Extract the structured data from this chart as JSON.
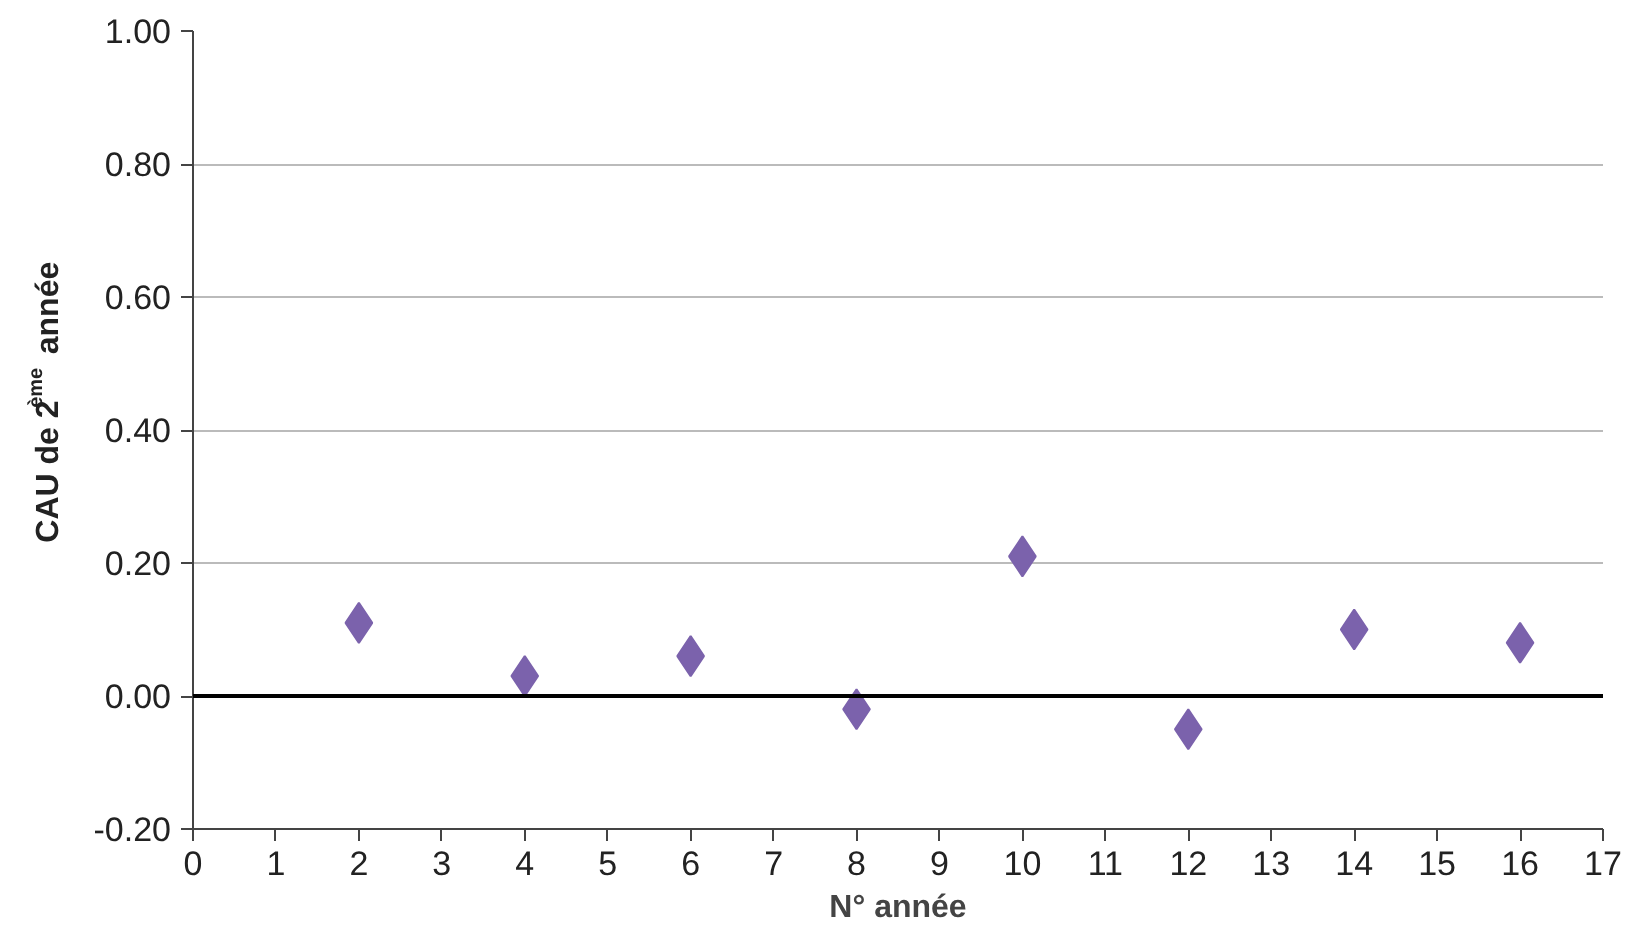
{
  "chart_data": {
    "type": "scatter",
    "xlabel": "N° année",
    "ylabel": "CAU de 2$^{ème}$ année",
    "x": [
      2,
      4,
      6,
      8,
      10,
      12,
      14,
      16
    ],
    "series": [
      {
        "color": "#7b62ac",
        "values": [
          0.11,
          0.03,
          0.06,
          -0.02,
          0.21,
          -0.05,
          0.1,
          0.08
        ]
      }
    ],
    "xlim": [
      0,
      17
    ],
    "xticks": [
      0,
      1,
      2,
      3,
      4,
      5,
      6,
      7,
      8,
      9,
      10,
      11,
      12,
      13,
      14,
      15,
      16,
      17
    ],
    "ylim": [
      -0.2,
      1.0
    ],
    "yticks": [
      {
        "value": -0.2,
        "label": "-0.20"
      },
      {
        "value": 0,
        "label": "0.00"
      },
      {
        "value": 0.2,
        "label": "0.20"
      },
      {
        "value": 0.4,
        "label": "0.40"
      },
      {
        "value": 0.6,
        "label": "0.60"
      },
      {
        "value": 0.8,
        "label": "0.80"
      },
      {
        "value": 1.0,
        "label": "1.00"
      }
    ],
    "grid": "y",
    "marker": "diamond",
    "ref_lines": [
      {
        "axis": "y",
        "value": 0,
        "color": "#000000"
      }
    ]
  }
}
